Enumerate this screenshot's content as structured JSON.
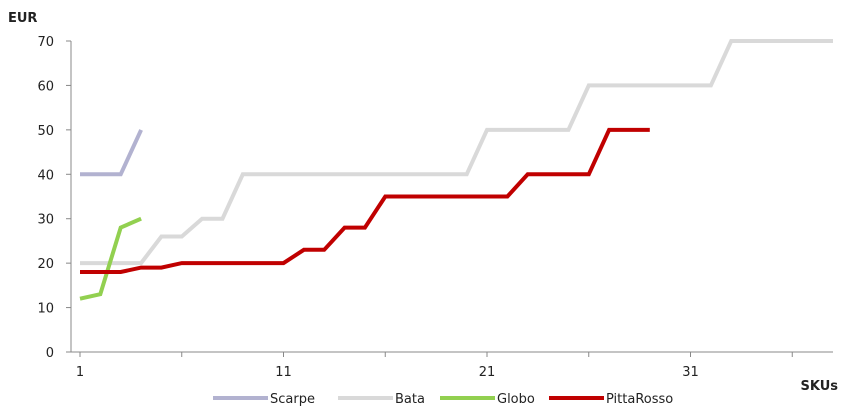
{
  "chart_data": {
    "type": "line",
    "ylabel": "EUR",
    "xlabel": "SKUs",
    "ylim": [
      0,
      70
    ],
    "yticks": [
      0,
      10,
      20,
      30,
      40,
      50,
      60,
      70
    ],
    "xlim": [
      1,
      38
    ],
    "xticks": [
      1,
      11,
      21,
      31
    ],
    "grid": false,
    "legend_position": "bottom",
    "series": [
      {
        "name": "Scarpe",
        "color": "#b2b2d0",
        "x": [
          1,
          2,
          3,
          4
        ],
        "y": [
          40,
          40,
          40,
          50
        ]
      },
      {
        "name": "Bata",
        "color": "#d9d9d9",
        "x": [
          1,
          2,
          3,
          4,
          5,
          6,
          7,
          8,
          9,
          10,
          11,
          12,
          13,
          14,
          15,
          16,
          17,
          18,
          19,
          20,
          21,
          22,
          23,
          24,
          25,
          26,
          27,
          28,
          29,
          30,
          31,
          32,
          33,
          34,
          35,
          36,
          37,
          38
        ],
        "y": [
          20,
          20,
          20,
          20,
          26,
          26,
          30,
          30,
          40,
          40,
          40,
          40,
          40,
          40,
          40,
          40,
          40,
          40,
          40,
          40,
          50,
          50,
          50,
          50,
          50,
          60,
          60,
          60,
          60,
          60,
          60,
          60,
          70,
          70,
          70,
          70,
          70,
          70
        ]
      },
      {
        "name": "Globo",
        "color": "#92d050",
        "x": [
          1,
          2,
          3,
          4
        ],
        "y": [
          12,
          13,
          28,
          30
        ]
      },
      {
        "name": "PittaRosso",
        "color": "#c00000",
        "x": [
          1,
          2,
          3,
          4,
          5,
          6,
          7,
          8,
          9,
          10,
          11,
          12,
          13,
          14,
          15,
          16,
          17,
          18,
          19,
          20,
          21,
          22,
          23,
          24,
          25,
          26,
          27,
          28,
          29
        ],
        "y": [
          18,
          18,
          18,
          19,
          19,
          20,
          20,
          20,
          20,
          20,
          20,
          23,
          23,
          28,
          28,
          35,
          35,
          35,
          35,
          35,
          35,
          35,
          40,
          40,
          40,
          40,
          50,
          50,
          50
        ]
      }
    ]
  }
}
